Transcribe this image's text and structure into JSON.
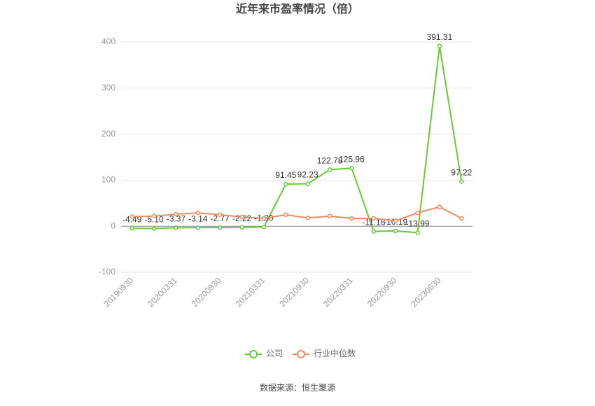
{
  "chart_data": {
    "type": "line",
    "title": "近年来市盈率情况（倍）",
    "categories": [
      "20190930",
      null,
      "20200331",
      null,
      "20200930",
      null,
      "20210331",
      null,
      "20210930",
      null,
      "20220331",
      null,
      "20220930",
      null,
      "20230630",
      null
    ],
    "series": [
      {
        "name": "公司",
        "color": "#66cc33",
        "values": [
          -4.49,
          -5.1,
          -3.37,
          -3.14,
          -2.77,
          -2.22,
          -1.8,
          91.45,
          92.23,
          122.78,
          125.96,
          -11.18,
          -10.19,
          -13.99,
          391.31,
          97.22
        ],
        "value_labels": [
          "-4.49",
          "-5.10",
          "-3.37",
          "-3.14",
          "-2.77",
          "-2.22",
          "-1.80",
          "91.45",
          "92.23",
          "122.78",
          "125.96",
          "-11.18",
          "-10.19",
          "-13.99",
          "391.31",
          "97.22"
        ]
      },
      {
        "name": "行业中位数",
        "color": "#f08a5d",
        "values": [
          21,
          22,
          26,
          29,
          25,
          20,
          17,
          25,
          18,
          22,
          17,
          17,
          12,
          29,
          42,
          17
        ]
      }
    ],
    "ylim": [
      -100,
      400
    ],
    "yticks": [
      -100,
      0,
      100,
      200,
      300,
      400
    ],
    "grid": true,
    "source": "数据来源：恒生聚源"
  }
}
